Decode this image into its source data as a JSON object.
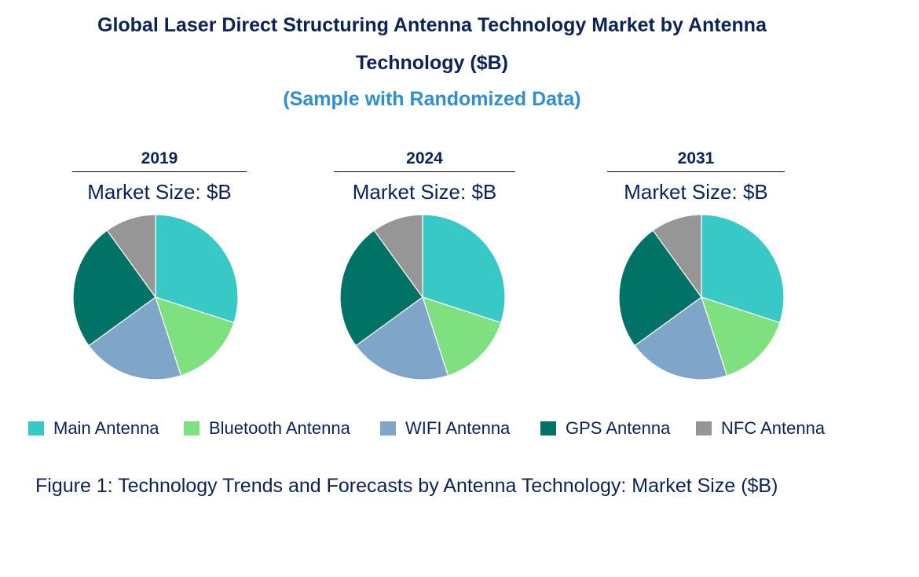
{
  "header": {
    "title_line1": "Global Laser Direct Structuring Antenna Technology Market by Antenna",
    "title_line2": "Technology ($B)",
    "subtitle": "(Sample with Randomized Data)"
  },
  "caption": "Figure 1: Technology Trends and Forecasts by Antenna Technology: Market Size ($B)",
  "chart_data": [
    {
      "type": "pie",
      "title": "2019",
      "subtitle": "Market Size: $B",
      "labels": [
        "Main Antenna",
        "Bluetooth Antenna",
        "WIFI Antenna",
        "GPS Antenna",
        "NFC Antenna"
      ],
      "values": [
        30,
        15,
        20,
        25,
        10
      ]
    },
    {
      "type": "pie",
      "title": "2024",
      "subtitle": "Market Size: $B",
      "labels": [
        "Main Antenna",
        "Bluetooth Antenna",
        "WIFI Antenna",
        "GPS Antenna",
        "NFC Antenna"
      ],
      "values": [
        30,
        15,
        20,
        25,
        10
      ]
    },
    {
      "type": "pie",
      "title": "2031",
      "subtitle": "Market Size: $B",
      "labels": [
        "Main Antenna",
        "Bluetooth Antenna",
        "WIFI Antenna",
        "GPS Antenna",
        "NFC Antenna"
      ],
      "values": [
        30,
        15,
        20,
        25,
        10
      ]
    }
  ],
  "legend": [
    {
      "label": "Main Antenna",
      "color": "#38c9c6"
    },
    {
      "label": "Bluetooth Antenna",
      "color": "#7ee07f"
    },
    {
      "label": "WIFI Antenna",
      "color": "#7fa5c9"
    },
    {
      "label": "GPS Antenna",
      "color": "#007366"
    },
    {
      "label": "NFC Antenna",
      "color": "#969696"
    }
  ]
}
